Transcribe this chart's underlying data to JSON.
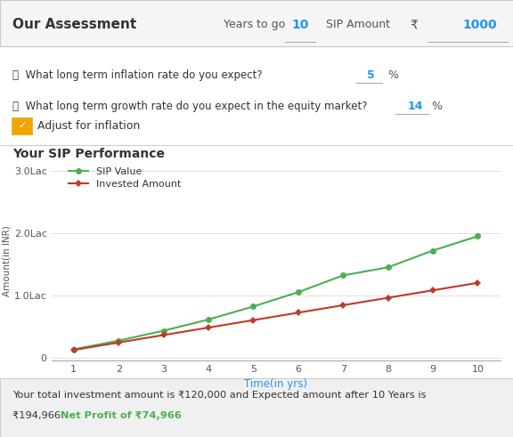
{
  "title_header": "Our Assessment",
  "years_to_go": 10,
  "sip_amount": 1000,
  "inflation_rate": 5,
  "growth_rate": 14,
  "adjust_for_inflation": true,
  "section_title": "Your SIP Performance",
  "sip_values": [
    0.13,
    0.27,
    0.43,
    0.61,
    0.82,
    1.05,
    1.32,
    1.45,
    1.72,
    1.95
  ],
  "invested_values": [
    0.12,
    0.24,
    0.36,
    0.48,
    0.6,
    0.72,
    0.84,
    0.96,
    1.08,
    1.2
  ],
  "x_values": [
    1,
    2,
    3,
    4,
    5,
    6,
    7,
    8,
    9,
    10
  ],
  "yticks": [
    0,
    1.0,
    2.0,
    3.0
  ],
  "ytick_labels": [
    "0",
    "1.0Lac",
    "2.0Lac",
    "3.0Lac"
  ],
  "xlabel": "Time(in yrs)",
  "ylabel": "Amount(in INR)",
  "sip_color": "#4CAF50",
  "invested_color": "#C0392B",
  "bg_color": "#ffffff",
  "header_bg": "#f5f5f5",
  "border_color": "#cccccc",
  "footer_line1": "Your total investment amount is ₹120,000 and Expected amount after 10 Years is",
  "footer_line2_black": "₹194,966. ",
  "footer_line2_green": "Net Profit of ₹74,966",
  "footer_bg": "#f0f0f0",
  "legend_sip": "SIP Value",
  "legend_invested": "Invested Amount",
  "info_text1": "ⓘ  What long term inflation rate do you expect?",
  "info_text2": "ⓘ  What long term growth rate do you expect in the equity market?",
  "checkbox_color": "#f0a500",
  "years_label": "Years to go",
  "sip_label": "SIP Amount",
  "rupee": "₹",
  "inflation_label": "5",
  "growth_label": "14",
  "adjust_label": "Adjust for inflation"
}
